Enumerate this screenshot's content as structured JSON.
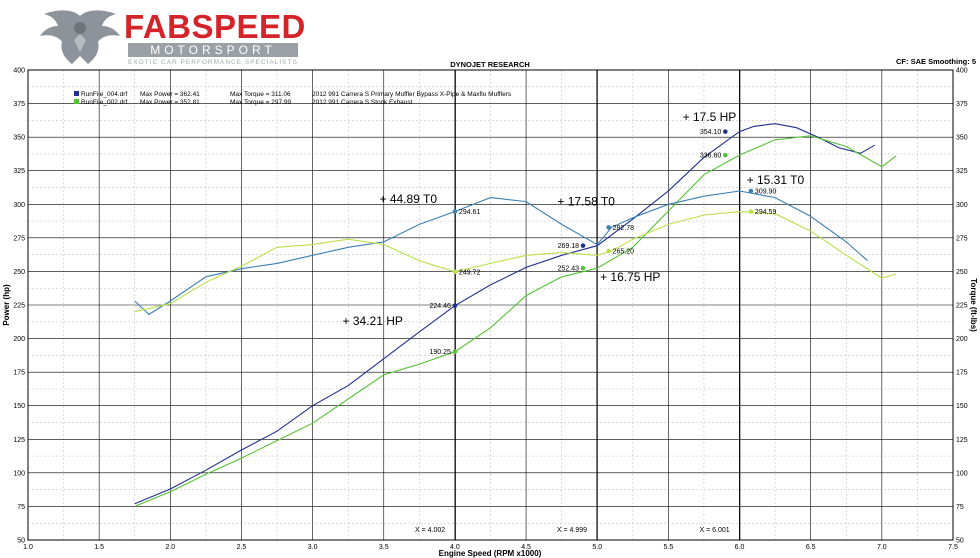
{
  "brand": {
    "name": "FABSPEED",
    "subtitle": "MOTORSPORT",
    "tagline": "EXOTIC CAR PERFORMANCE SPECIALISTS",
    "color": "#d4242a"
  },
  "chart_data": {
    "type": "line",
    "title": "DYNOJET RESEARCH",
    "corner_info": "CF: SAE  Smoothing: 5",
    "xlabel": "Engine Speed (RPM x1000)",
    "ylabel_left": "Power (hp)",
    "ylabel_right": "Torque (ft-lbs)",
    "xlim": [
      1.0,
      7.5
    ],
    "ylim": [
      50,
      400
    ],
    "x_ticks": [
      "1.0",
      "1.5",
      "2.0",
      "2.5",
      "3.0",
      "3.5",
      "4.0",
      "4.5",
      "5.0",
      "5.5",
      "6.0",
      "6.5",
      "7.0",
      "7.5"
    ],
    "y_ticks": [
      "50",
      "75",
      "100",
      "125",
      "150",
      "175",
      "200",
      "225",
      "250",
      "275",
      "300",
      "325",
      "350",
      "375",
      "400"
    ],
    "grid": true,
    "legend": [
      {
        "file": "RunFile_004.drf",
        "max_power": "Max Power = 362.41",
        "max_torque": "Max Torque = 311.06",
        "description": "2012 991 Carrera S Primary Muffler Bypass X-Pipe & Maxflo Mufflers",
        "color": "#1f2f8c"
      },
      {
        "file": "RunFile_002.drf",
        "max_power": "Max Power = 352.81",
        "max_torque": "Max Torque = 297.99",
        "description": "2012 991 Carrera S Stock Exhaust",
        "color": "#55c234"
      }
    ],
    "cursors": [
      {
        "x": 4.002,
        "label": "X = 4.002"
      },
      {
        "x": 4.999,
        "label": "X = 4.999"
      },
      {
        "x": 6.001,
        "label": "X = 6.001"
      }
    ],
    "series": [
      {
        "name": "RunFile_004.drf",
        "measure": "Power",
        "color": "#1f2f8c",
        "x": [
          1.75,
          2.0,
          2.25,
          2.5,
          2.75,
          3.0,
          3.25,
          3.5,
          3.75,
          4.0,
          4.25,
          4.5,
          4.75,
          5.0,
          5.25,
          5.5,
          5.75,
          6.0,
          6.1,
          6.25,
          6.4,
          6.55,
          6.7,
          6.85,
          6.95
        ],
        "y": [
          77,
          88,
          102,
          117,
          131,
          150,
          165,
          185,
          205,
          224.46,
          240,
          253,
          262,
          269.18,
          289,
          310,
          335,
          354.1,
          358,
          360,
          357,
          350,
          342,
          338,
          344
        ]
      },
      {
        "name": "RunFile_002.drf",
        "measure": "Power",
        "color": "#55c234",
        "x": [
          1.75,
          2.0,
          2.25,
          2.5,
          2.75,
          3.0,
          3.25,
          3.5,
          3.75,
          4.0,
          4.25,
          4.5,
          4.75,
          5.0,
          5.25,
          5.5,
          5.75,
          6.0,
          6.25,
          6.5,
          6.75,
          7.0,
          7.1
        ],
        "y": [
          75,
          86,
          99,
          111,
          124,
          137,
          155,
          173,
          181,
          190.25,
          208,
          232,
          246,
          252.43,
          268,
          295,
          322,
          336.6,
          348,
          351,
          343,
          328,
          336
        ]
      },
      {
        "name": "RunFile_004.drf",
        "measure": "Torque",
        "color": "#3d7fb0",
        "x": [
          1.75,
          1.85,
          2.0,
          2.25,
          2.5,
          2.75,
          3.0,
          3.25,
          3.5,
          3.75,
          4.0,
          4.25,
          4.5,
          4.75,
          5.0,
          5.1,
          5.25,
          5.5,
          5.75,
          6.0,
          6.25,
          6.5,
          6.75,
          6.9
        ],
        "y": [
          228,
          218,
          228,
          246,
          252,
          256,
          262,
          268,
          272,
          285,
          294.61,
          305,
          302,
          285,
          270,
          282.78,
          290,
          300,
          306,
          309.9,
          305,
          291,
          272,
          258
        ]
      },
      {
        "name": "RunFile_002.drf",
        "measure": "Torque",
        "color": "#b9e04a",
        "x": [
          1.75,
          2.0,
          2.25,
          2.5,
          2.75,
          3.0,
          3.25,
          3.5,
          3.75,
          4.0,
          4.25,
          4.5,
          4.75,
          5.0,
          5.1,
          5.25,
          5.5,
          5.75,
          6.0,
          6.25,
          6.5,
          6.75,
          7.0,
          7.1
        ],
        "y": [
          220,
          226,
          242,
          254,
          268,
          270,
          274,
          270,
          258,
          249.72,
          256,
          262,
          264,
          262,
          265.2,
          274,
          285,
          292,
          294.59,
          293,
          280,
          262,
          245,
          248
        ]
      }
    ],
    "markers": [
      {
        "x": 4.0,
        "y": 224.46,
        "label": "224.46",
        "color": "#1f2f8c",
        "side": "left"
      },
      {
        "x": 4.0,
        "y": 190.25,
        "label": "190.25",
        "color": "#55c234",
        "side": "left"
      },
      {
        "x": 4.0,
        "y": 294.61,
        "label": "294.61",
        "color": "#3d7fb0",
        "side": "right"
      },
      {
        "x": 4.0,
        "y": 249.72,
        "label": "249.72",
        "color": "#b9e04a",
        "side": "right"
      },
      {
        "x": 4.9,
        "y": 269.18,
        "label": "269.18",
        "color": "#1f2f8c",
        "side": "left"
      },
      {
        "x": 4.9,
        "y": 252.43,
        "label": "252.43",
        "color": "#55c234",
        "side": "left"
      },
      {
        "x": 5.08,
        "y": 282.78,
        "label": "282.78",
        "color": "#3d7fb0",
        "side": "right"
      },
      {
        "x": 5.08,
        "y": 265.2,
        "label": "265.20",
        "color": "#b9e04a",
        "side": "right"
      },
      {
        "x": 5.9,
        "y": 354.1,
        "label": "354.10",
        "color": "#1f2f8c",
        "side": "left"
      },
      {
        "x": 5.9,
        "y": 336.6,
        "label": "336.60",
        "color": "#55c234",
        "side": "left"
      },
      {
        "x": 6.08,
        "y": 309.9,
        "label": "309.90",
        "color": "#3d7fb0",
        "side": "right"
      },
      {
        "x": 6.08,
        "y": 294.59,
        "label": "294.59",
        "color": "#b9e04a",
        "side": "right"
      }
    ],
    "annotations": [
      {
        "x": 3.47,
        "y": 301,
        "text": "+ 44.89 T0"
      },
      {
        "x": 3.21,
        "y": 210,
        "text": "+ 34.21 HP"
      },
      {
        "x": 4.72,
        "y": 299,
        "text": "+ 17.58 T0"
      },
      {
        "x": 5.02,
        "y": 243,
        "text": "+ 16.75 HP"
      },
      {
        "x": 5.6,
        "y": 362,
        "text": "+ 17.5 HP"
      },
      {
        "x": 6.05,
        "y": 315,
        "text": "+ 15.31 T0"
      }
    ]
  }
}
